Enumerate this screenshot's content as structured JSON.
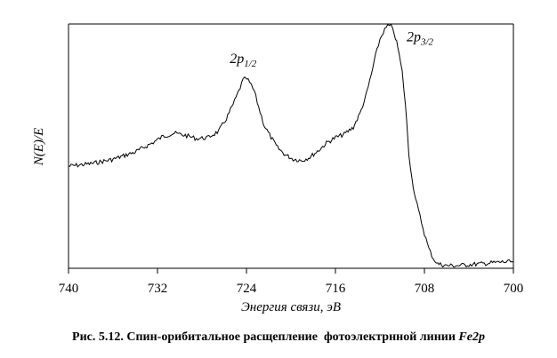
{
  "chart_data": {
    "type": "line",
    "xlabel": "Энергия связи, эВ",
    "ylabel": "N(E)/E",
    "x_reversed": true,
    "xlim": [
      740,
      700
    ],
    "ylim": [
      0,
      1
    ],
    "xticks": [
      740,
      732,
      724,
      716,
      708,
      700
    ],
    "grid": false,
    "series": [
      {
        "points": [
          [
            740.0,
            0.418
          ],
          [
            738.0,
            0.428
          ],
          [
            736.0,
            0.446
          ],
          [
            734.0,
            0.476
          ],
          [
            732.5,
            0.512
          ],
          [
            731.5,
            0.54
          ],
          [
            730.5,
            0.553
          ],
          [
            729.5,
            0.544
          ],
          [
            728.5,
            0.531
          ],
          [
            727.5,
            0.534
          ],
          [
            726.5,
            0.561
          ],
          [
            725.8,
            0.613
          ],
          [
            725.2,
            0.671
          ],
          [
            724.7,
            0.724
          ],
          [
            724.3,
            0.771
          ],
          [
            724.0,
            0.777
          ],
          [
            723.7,
            0.759
          ],
          [
            723.3,
            0.725
          ],
          [
            722.9,
            0.659
          ],
          [
            722.4,
            0.584
          ],
          [
            721.8,
            0.536
          ],
          [
            721.2,
            0.493
          ],
          [
            720.5,
            0.464
          ],
          [
            719.8,
            0.447
          ],
          [
            719.0,
            0.441
          ],
          [
            718.3,
            0.455
          ],
          [
            717.5,
            0.483
          ],
          [
            716.8,
            0.513
          ],
          [
            716.0,
            0.535
          ],
          [
            715.2,
            0.549
          ],
          [
            714.4,
            0.577
          ],
          [
            713.8,
            0.633
          ],
          [
            713.3,
            0.699
          ],
          [
            712.8,
            0.788
          ],
          [
            712.4,
            0.869
          ],
          [
            712.0,
            0.937
          ],
          [
            711.7,
            0.967
          ],
          [
            711.3,
            0.993
          ],
          [
            711.0,
            0.99
          ],
          [
            710.7,
            0.96
          ],
          [
            710.4,
            0.906
          ],
          [
            710.0,
            0.804
          ],
          [
            709.7,
            0.667
          ],
          [
            709.4,
            0.47
          ],
          [
            709.1,
            0.361
          ],
          [
            708.8,
            0.284
          ],
          [
            708.4,
            0.213
          ],
          [
            708.0,
            0.142
          ],
          [
            707.6,
            0.08
          ],
          [
            707.2,
            0.04
          ],
          [
            706.8,
            0.018
          ],
          [
            706.0,
            0.011
          ],
          [
            705.0,
            0.011
          ],
          [
            704.0,
            0.015
          ],
          [
            703.0,
            0.018
          ],
          [
            702.0,
            0.022
          ],
          [
            701.0,
            0.026
          ],
          [
            700.0,
            0.026
          ]
        ]
      }
    ],
    "annotations": [
      {
        "base": "2p",
        "sub": "1/2",
        "x": 724.3,
        "y": 0.84
      },
      {
        "base": "2p",
        "sub": "3/2",
        "x": 708.4,
        "y": 0.93
      }
    ]
  },
  "caption": {
    "text": "Рис. 5.12. Спин-орибитальное расщепление  фотоэлектрнной линии ",
    "emphasis": "Fe2p"
  }
}
